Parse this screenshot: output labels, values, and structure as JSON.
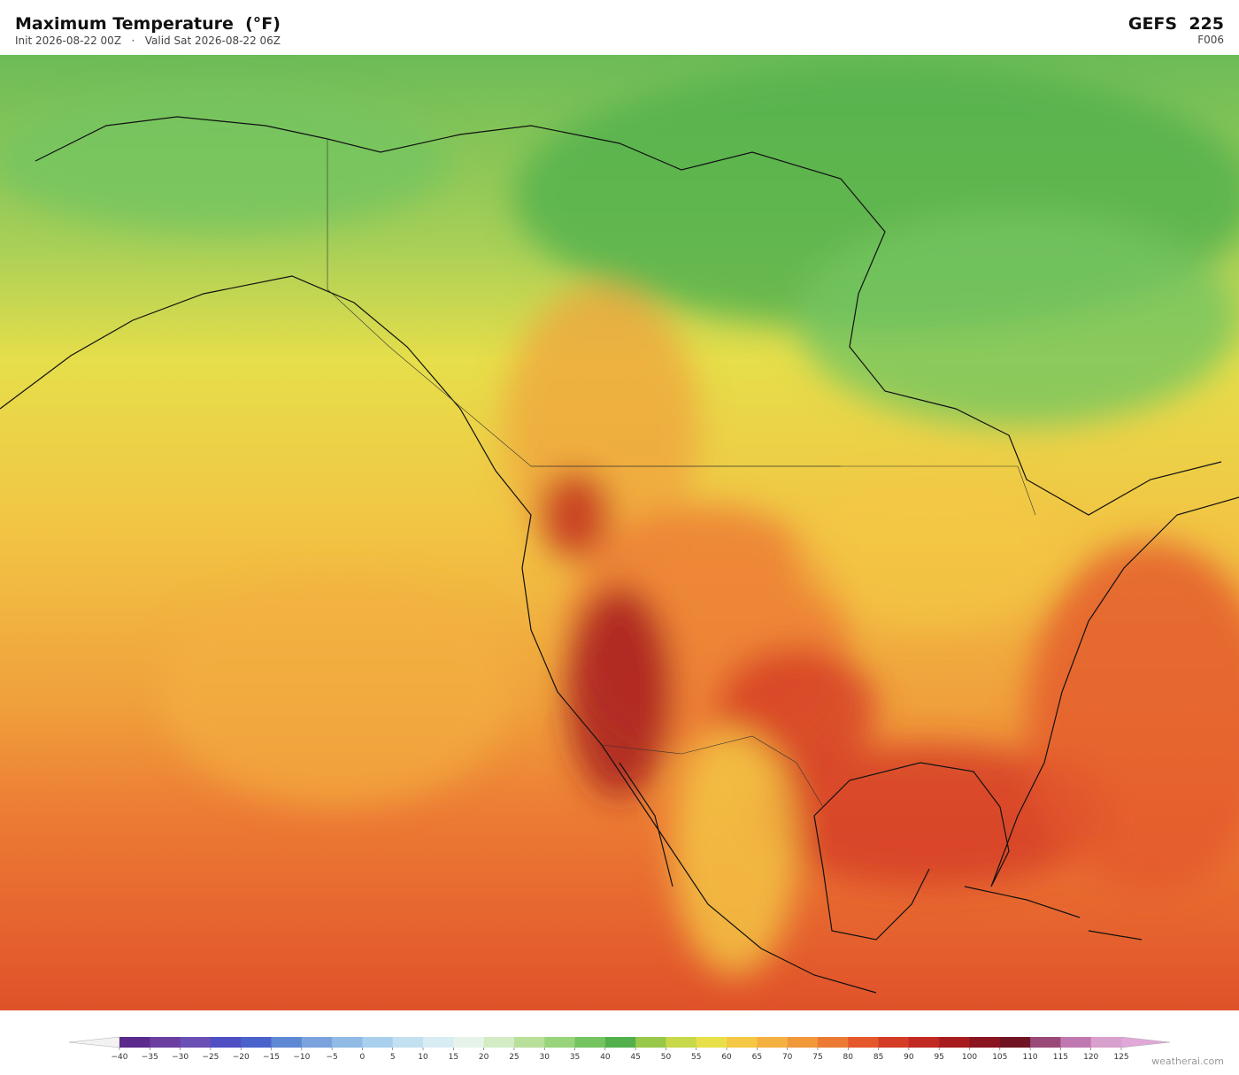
{
  "header": {
    "title": "Maximum Temperature  (°F)",
    "subtitle": "Init 2026-08-22 00Z   ·   Valid Sat 2026-08-22 06Z",
    "model": "GEFS  225",
    "forecast": "F006"
  },
  "colorbar": {
    "ticks": [
      {
        "value": -40,
        "label": "−40"
      },
      {
        "value": -35,
        "label": "−35"
      },
      {
        "value": -30,
        "label": "−30"
      },
      {
        "value": -25,
        "label": "−25"
      },
      {
        "value": -20,
        "label": "−20"
      },
      {
        "value": -15,
        "label": "−15"
      },
      {
        "value": -10,
        "label": "−10"
      },
      {
        "value": -5,
        "label": "−5"
      },
      0,
      5,
      10,
      15,
      20,
      25,
      30,
      35,
      40,
      45,
      50,
      55,
      60,
      65,
      70,
      75,
      80,
      85,
      90,
      95,
      100,
      105,
      110,
      115,
      120,
      125
    ],
    "colors": [
      "#5b2a8c",
      "#6b3fa0",
      "#6a4fb5",
      "#4f4fc4",
      "#4a63cc",
      "#5f88d4",
      "#7aa2dc",
      "#8fbbe4",
      "#a8d0ec",
      "#c2e0f0",
      "#d8ecf4",
      "#e6f3ea",
      "#d4ecc4",
      "#b8e09a",
      "#98d47c",
      "#74c460",
      "#52b04c",
      "#98c84a",
      "#c8d84a",
      "#e8e048",
      "#f4c844",
      "#f4b040",
      "#f0983a",
      "#ec7a34",
      "#e4582c",
      "#d43c26",
      "#c02a22",
      "#a81c1e",
      "#8a1420",
      "#701424",
      "#9a4a78",
      "#c078b0",
      "#d8a0cc"
    ],
    "under_color": "#f2f2f2",
    "over_color": "#e0a8d8"
  },
  "footer": {
    "credit": "weatherai.com"
  }
}
